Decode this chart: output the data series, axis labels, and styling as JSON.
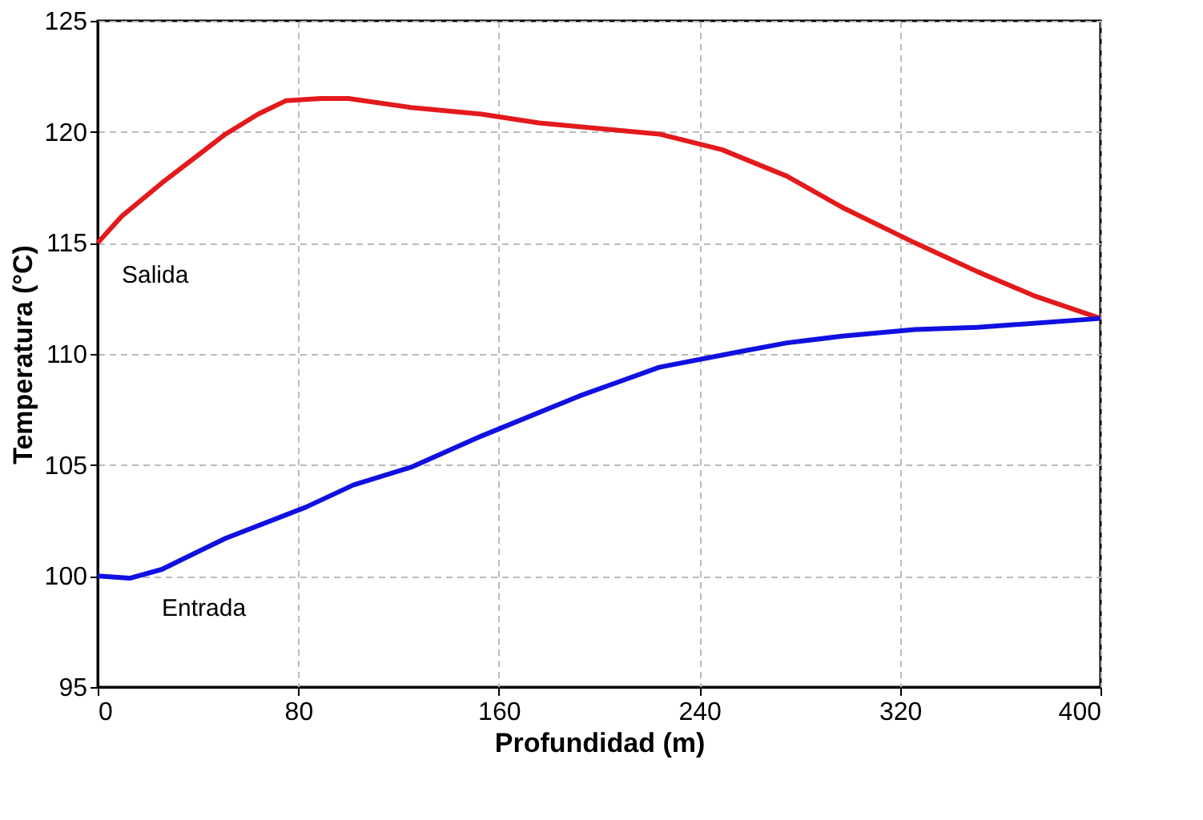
{
  "chart_data": {
    "type": "line",
    "xlabel": "Profundidad (m)",
    "ylabel": "Temperatura (°C)",
    "xlim": [
      0,
      400
    ],
    "xticks": [
      0,
      80,
      160,
      240,
      320,
      400
    ],
    "ylim": [
      95,
      125
    ],
    "yticks": [
      95,
      100,
      105,
      110,
      115,
      120,
      125
    ],
    "grid": true,
    "marker": "none",
    "line_style": "solid",
    "series": [
      {
        "name": "Salida",
        "color": "#e31a1c",
        "x": [
          0,
          9.6,
          25.6,
          51,
          64,
          75,
          89,
          100,
          125,
          153,
          176,
          224,
          249,
          275,
          297,
          326,
          351,
          374,
          400
        ],
        "values": [
          115.0,
          116.2,
          117.7,
          119.9,
          120.8,
          121.4,
          121.5,
          121.5,
          121.1,
          120.8,
          120.4,
          119.9,
          119.2,
          118.0,
          116.6,
          115.0,
          113.7,
          112.6,
          111.6
        ]
      },
      {
        "name": "Entrada",
        "color": "#1010e0",
        "x": [
          0,
          12.8,
          25.6,
          51,
          83,
          102,
          125,
          153,
          192,
          224,
          256,
          275,
          297,
          326,
          351,
          400
        ],
        "values": [
          100.0,
          99.9,
          100.3,
          101.7,
          103.1,
          104.1,
          104.9,
          106.3,
          108.1,
          109.4,
          110.1,
          110.5,
          110.8,
          111.1,
          111.2,
          111.6
        ]
      }
    ]
  }
}
